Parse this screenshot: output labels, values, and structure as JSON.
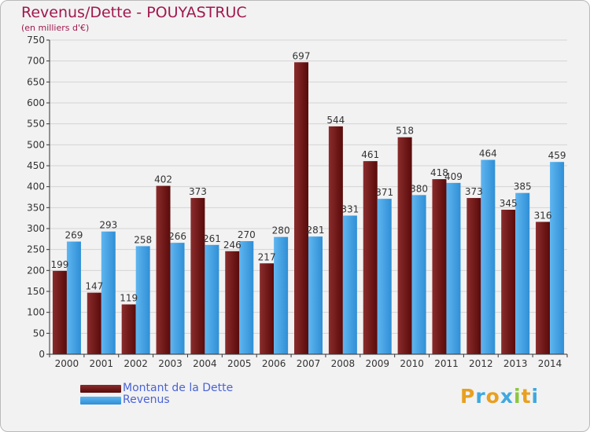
{
  "header": {
    "title": "Revenus/Dette - POUYASTRUC",
    "subtitle": "(en milliers d'€)"
  },
  "colors": {
    "dette_top": "#8a2c2c",
    "dette_bottom": "#5a0a0a",
    "revenus_top": "#5fb5ef",
    "revenus_bottom": "#2f8fd6",
    "title": "#a0184e",
    "legend_text": "#4a63d6",
    "grid": "#d4d4d4",
    "background": "#f2f2f2"
  },
  "chart_data": {
    "type": "bar",
    "title": "Revenus/Dette - POUYASTRUC",
    "ylabel": "(en milliers d'€)",
    "xlabel": "",
    "ylim": [
      0,
      750
    ],
    "yticks": [
      0,
      50,
      100,
      150,
      200,
      250,
      300,
      350,
      400,
      450,
      500,
      550,
      600,
      650,
      700,
      750
    ],
    "grid": true,
    "legend_position": "bottom-left",
    "categories": [
      "2000",
      "2001",
      "2002",
      "2003",
      "2004",
      "2005",
      "2006",
      "2007",
      "2008",
      "2009",
      "2010",
      "2011",
      "2012",
      "2013",
      "2014"
    ],
    "series": [
      {
        "name": "Montant de la Dette",
        "values": [
          199,
          147,
          119,
          402,
          373,
          246,
          217,
          697,
          544,
          461,
          518,
          418,
          373,
          345,
          316
        ]
      },
      {
        "name": "Revenus",
        "values": [
          269,
          293,
          258,
          266,
          261,
          270,
          280,
          281,
          331,
          371,
          380,
          409,
          464,
          385,
          459
        ]
      }
    ]
  },
  "legend": {
    "dette_label": "Montant de la Dette",
    "revenus_label": "Revenus"
  },
  "logo": {
    "letters": [
      "P",
      "r",
      "o",
      "x",
      "i",
      "t",
      "i"
    ],
    "colors": [
      "#e8a020",
      "#3fa8e0",
      "#e8a020",
      "#3fa8e0",
      "#8cc63f",
      "#e8a020",
      "#3fa8e0"
    ]
  }
}
